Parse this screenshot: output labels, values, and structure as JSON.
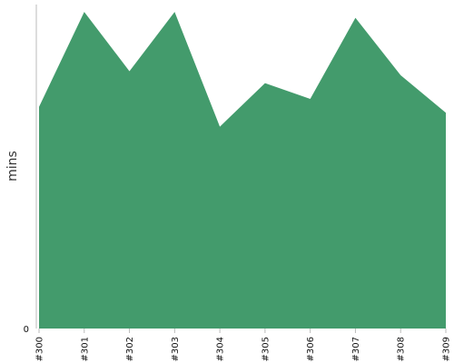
{
  "chart_data": {
    "type": "area",
    "categories": [
      "#300",
      "#301",
      "#302",
      "#303",
      "#304",
      "#305",
      "#306",
      "#307",
      "#308",
      "#309"
    ],
    "series": [
      {
        "values": [
          56,
          80,
          65,
          80,
          51,
          62,
          58,
          78.5,
          64,
          54.5
        ]
      }
    ],
    "xlabel": "",
    "ylabel": "mins",
    "ylim": [
      0,
      83
    ],
    "y_ticks": [
      "0"
    ],
    "grid": false,
    "legend": "none",
    "colors": {
      "area_fill": "#439b6c",
      "axis": "#bbbbbb"
    }
  }
}
